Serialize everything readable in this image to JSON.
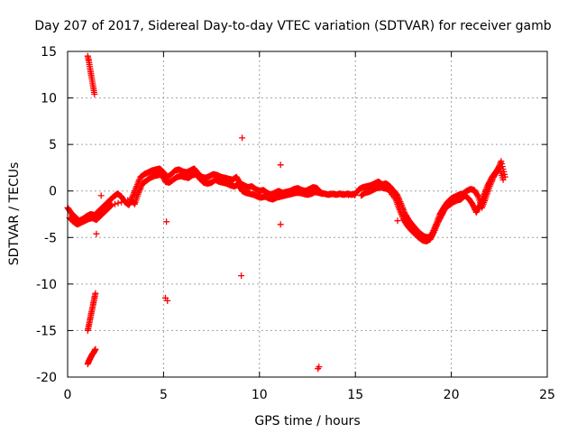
{
  "chart_data": {
    "type": "scatter",
    "title": "Day 207 of 2017, Sidereal Day-to-day VTEC variation (SDTVAR) for receiver gamb",
    "xlabel": "GPS time / hours",
    "ylabel": "SDTVAR / TECUs",
    "xlim": [
      0,
      25
    ],
    "ylim": [
      -20,
      15
    ],
    "xticks": [
      0,
      5,
      10,
      15,
      20,
      25
    ],
    "yticks": [
      -20,
      -15,
      -10,
      -5,
      0,
      5,
      10,
      15
    ],
    "xtick_labels": [
      "0",
      "5",
      "10",
      "15",
      "20",
      "25"
    ],
    "ytick_labels": [
      "-20",
      "-15",
      "-10",
      "-5",
      "0",
      "5",
      "10",
      "15"
    ],
    "grid": true,
    "marker": "plus",
    "series_color": "#ff0000",
    "series": [
      {
        "name": "main-trace",
        "x": [
          0.0,
          0.2,
          0.4,
          0.6,
          0.8,
          1.0,
          1.2,
          1.4,
          1.6,
          1.8,
          2.0,
          2.2,
          2.4,
          2.6,
          2.8,
          3.0,
          3.2,
          3.4,
          3.6,
          3.8,
          4.0,
          4.2,
          4.4,
          4.6,
          4.8,
          5.0,
          5.2,
          5.4,
          5.6,
          5.8,
          6.0,
          6.2,
          6.4,
          6.6,
          6.8,
          7.0,
          7.2,
          7.4,
          7.6,
          7.8,
          8.0,
          8.2,
          8.4,
          8.6,
          8.8,
          9.0,
          9.2,
          9.4,
          9.6,
          9.8,
          10.0,
          10.2,
          10.4,
          10.6,
          10.8,
          11.0,
          11.2,
          11.4,
          11.6,
          11.8,
          12.0,
          12.2,
          12.4,
          12.6,
          12.8,
          13.0,
          13.2,
          13.4,
          13.6,
          13.8,
          14.0,
          14.2,
          14.4,
          14.6,
          14.8,
          15.0,
          15.2,
          15.4,
          15.6,
          15.8,
          16.0,
          16.2,
          16.4,
          16.6,
          16.8,
          17.0,
          17.2,
          17.4,
          17.6,
          17.8,
          18.0,
          18.2,
          18.4,
          18.6,
          18.8,
          19.0,
          19.2,
          19.4,
          19.6,
          19.8,
          20.0,
          20.2,
          20.4,
          20.6,
          20.8,
          21.0,
          21.2,
          21.4,
          21.6,
          21.8,
          22.0,
          22.2,
          22.4,
          22.6,
          22.8
        ],
        "y": [
          -1.8,
          -2.4,
          -2.8,
          -3.2,
          -3.0,
          -2.7,
          -2.5,
          -2.6,
          -2.2,
          -1.8,
          -1.4,
          -1.0,
          -0.6,
          -0.3,
          -0.6,
          -1.2,
          -1.5,
          -0.5,
          0.5,
          1.5,
          1.8,
          2.0,
          2.2,
          2.3,
          2.4,
          2.0,
          1.5,
          1.8,
          2.2,
          2.3,
          2.1,
          2.0,
          2.2,
          2.4,
          1.9,
          1.5,
          1.4,
          1.6,
          1.8,
          1.7,
          1.5,
          1.4,
          1.3,
          1.2,
          1.5,
          0.8,
          0.6,
          0.4,
          0.5,
          0.2,
          0.0,
          0.1,
          -0.2,
          -0.4,
          -0.2,
          0.0,
          -0.2,
          -0.1,
          0.0,
          0.2,
          0.3,
          0.1,
          0.0,
          0.2,
          0.4,
          0.3,
          -0.2,
          -0.3,
          -0.4,
          -0.3,
          -0.4,
          -0.3,
          -0.4,
          -0.3,
          -0.4,
          -0.3,
          0.2,
          0.4,
          0.5,
          0.6,
          0.8,
          1.0,
          0.7,
          0.8,
          0.5,
          0.0,
          -0.5,
          -1.5,
          -2.5,
          -3.2,
          -3.7,
          -4.2,
          -4.6,
          -4.9,
          -5.0,
          -4.6,
          -3.6,
          -2.5,
          -1.8,
          -1.2,
          -0.8,
          -0.6,
          -0.4,
          -0.3,
          0.0,
          0.2,
          0.1,
          -0.6,
          -1.8,
          -0.7,
          0.5,
          1.5,
          2.2,
          3.2,
          1.5
        ]
      },
      {
        "name": "main-trace-spread",
        "x": [
          0.1,
          0.3,
          0.5,
          0.7,
          0.9,
          1.1,
          1.3,
          1.5,
          1.7,
          1.9,
          2.1,
          2.3,
          3.3,
          3.5,
          3.7,
          3.9,
          4.1,
          4.3,
          4.5,
          4.7,
          4.9,
          5.1,
          5.3,
          5.5,
          5.7,
          5.9,
          6.1,
          6.3,
          6.5,
          6.7,
          6.9,
          7.1,
          7.3,
          7.5,
          7.7,
          7.9,
          8.1,
          8.3,
          8.5,
          8.7,
          8.9,
          9.1,
          9.3,
          9.5,
          9.7,
          9.9,
          10.1,
          10.3,
          10.5,
          10.7,
          10.9,
          11.1,
          11.3,
          11.5,
          11.7,
          11.9,
          12.1,
          12.3,
          12.5,
          12.7,
          12.9,
          13.1,
          13.3,
          15.3,
          15.5,
          15.7,
          15.9,
          16.1,
          16.3,
          16.5,
          16.7,
          17.1,
          17.3,
          17.5,
          17.7,
          17.9,
          18.1,
          18.3,
          18.5,
          18.7,
          18.9,
          19.1,
          19.3,
          19.5,
          19.7,
          19.9,
          20.1,
          20.3,
          20.5,
          20.7,
          20.9,
          21.1,
          21.3,
          21.5,
          21.7,
          21.9,
          22.1,
          22.3,
          22.5,
          22.7
        ],
        "y": [
          -2.9,
          -3.3,
          -3.6,
          -3.4,
          -3.2,
          -3.0,
          -2.9,
          -3.1,
          -2.7,
          -2.3,
          -1.9,
          -1.5,
          -0.9,
          -1.4,
          -0.2,
          0.8,
          1.1,
          1.4,
          1.6,
          1.7,
          1.8,
          1.0,
          0.9,
          1.2,
          1.5,
          1.6,
          1.5,
          1.4,
          1.7,
          1.8,
          1.3,
          0.9,
          0.8,
          0.9,
          1.2,
          1.0,
          0.9,
          0.8,
          0.6,
          0.5,
          0.7,
          0.0,
          -0.2,
          -0.3,
          -0.4,
          -0.6,
          -0.7,
          -0.6,
          -0.8,
          -0.9,
          -0.7,
          -0.6,
          -0.5,
          -0.4,
          -0.3,
          -0.2,
          -0.2,
          -0.3,
          -0.4,
          -0.3,
          -0.1,
          -0.2,
          -0.3,
          -0.5,
          -0.2,
          -0.1,
          0.1,
          0.3,
          0.4,
          0.3,
          0.2,
          -0.9,
          -2.0,
          -3.0,
          -3.7,
          -4.2,
          -4.6,
          -5.0,
          -5.3,
          -5.4,
          -5.2,
          -4.4,
          -3.4,
          -2.6,
          -1.8,
          -1.5,
          -1.2,
          -1.0,
          -0.9,
          -0.5,
          -0.8,
          -1.4,
          -2.3,
          -1.5,
          -0.4,
          0.6,
          1.4,
          2.0,
          2.6,
          1.2
        ]
      },
      {
        "name": "steep-rise-1",
        "x": [
          1.05,
          1.1,
          1.15,
          1.2,
          1.25,
          1.3,
          1.35,
          1.4
        ],
        "y": [
          14.5,
          14.0,
          13.4,
          12.8,
          12.2,
          11.6,
          11.0,
          10.4
        ]
      },
      {
        "name": "steep-fall-1",
        "x": [
          1.05,
          1.1,
          1.15,
          1.2,
          1.25,
          1.3,
          1.35,
          1.4,
          1.45
        ],
        "y": [
          -15.0,
          -14.5,
          -14.0,
          -13.5,
          -13.0,
          -12.5,
          -12.0,
          -11.5,
          -11.0
        ]
      },
      {
        "name": "steep-fall-2",
        "x": [
          1.05,
          1.1,
          1.15,
          1.2,
          1.25,
          1.3,
          1.35,
          1.4,
          1.45
        ],
        "y": [
          -18.6,
          -18.3,
          -18.1,
          -17.9,
          -17.7,
          -17.5,
          -17.4,
          -17.2,
          -17.0
        ]
      },
      {
        "name": "outliers",
        "x": [
          1.5,
          1.75,
          5.15,
          5.1,
          5.2,
          9.1,
          9.05,
          11.1,
          11.1,
          13.1,
          13.05,
          17.2
        ],
        "y": [
          -4.6,
          -0.5,
          -3.3,
          -11.5,
          -11.8,
          5.7,
          -9.1,
          2.8,
          -3.6,
          -18.9,
          -19.1,
          -3.2
        ]
      }
    ]
  }
}
